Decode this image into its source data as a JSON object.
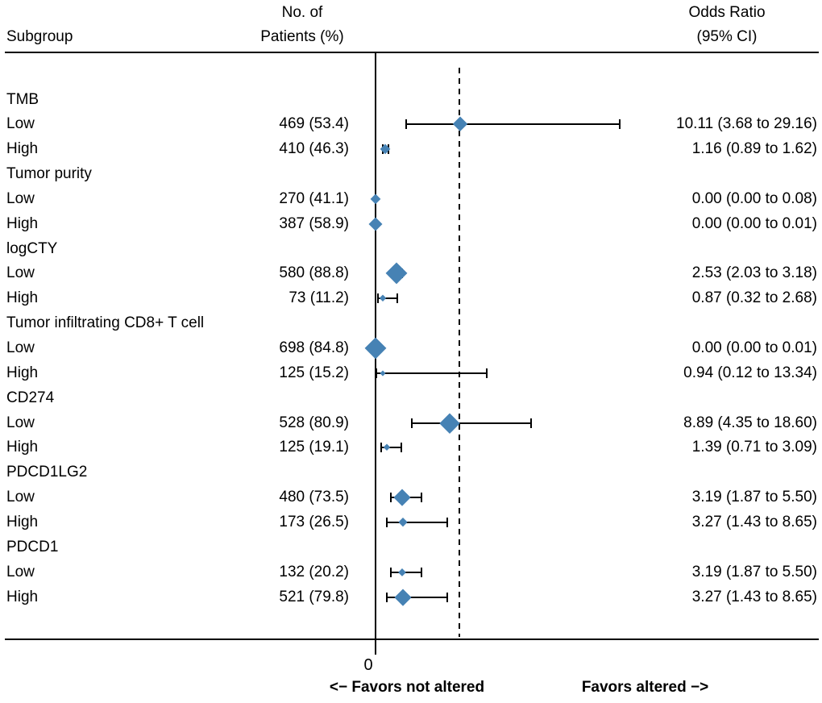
{
  "header": {
    "col_subgroup": "Subgroup",
    "col_patients_line1": "No. of",
    "col_patients_line2": "Patients (%)",
    "col_or_line1": "Odds Ratio",
    "col_or_line2": "(95% CI)"
  },
  "axis": {
    "zero_label": "0",
    "favors_left": "<− Favors not altered",
    "favors_right": "Favors altered −>"
  },
  "chart_data": {
    "type": "forest",
    "title": "",
    "columns": [
      "Subgroup",
      "No. of Patients (%)",
      "Odds Ratio (95% CI)"
    ],
    "x_axis": {
      "scale": "linear",
      "min": 0,
      "max": 52,
      "tick_labels": [
        "0"
      ],
      "zero_line": 0,
      "dashed_reference": 10
    },
    "marker_color": "#4682B4",
    "rows": [
      {
        "type": "group",
        "label": "TMB"
      },
      {
        "type": "item",
        "label": "Low",
        "patients": "469 (53.4)",
        "n": 469,
        "pct": 53.4,
        "or": 10.11,
        "ci_low": 3.68,
        "ci_high": 29.16,
        "or_text": "10.11 (3.68 to 29.16)",
        "marker": 19
      },
      {
        "type": "item",
        "label": "High",
        "patients": "410 (46.3)",
        "n": 410,
        "pct": 46.3,
        "or": 1.16,
        "ci_low": 0.89,
        "ci_high": 1.62,
        "or_text": "1.16 (0.89 to 1.62)",
        "marker": 13
      },
      {
        "type": "group",
        "label": "Tumor purity"
      },
      {
        "type": "item",
        "label": "Low",
        "patients": "270 (41.1)",
        "n": 270,
        "pct": 41.1,
        "or": 0.0,
        "ci_low": 0.0,
        "ci_high": 0.08,
        "or_text": "0.00 (0.00 to 0.08)",
        "marker": 13
      },
      {
        "type": "item",
        "label": "High",
        "patients": "387 (58.9)",
        "n": 387,
        "pct": 58.9,
        "or": 0.0,
        "ci_low": 0.0,
        "ci_high": 0.01,
        "or_text": "0.00 (0.00 to 0.01)",
        "marker": 17
      },
      {
        "type": "group",
        "label": "logCTY"
      },
      {
        "type": "item",
        "label": "Low",
        "patients": "580 (88.8)",
        "n": 580,
        "pct": 88.8,
        "or": 2.53,
        "ci_low": 2.03,
        "ci_high": 3.18,
        "or_text": "2.53 (2.03 to 3.18)",
        "marker": 27
      },
      {
        "type": "item",
        "label": "High",
        "patients": "73 (11.2)",
        "n": 73,
        "pct": 11.2,
        "or": 0.87,
        "ci_low": 0.32,
        "ci_high": 2.68,
        "or_text": "0.87 (0.32 to 2.68)",
        "marker": 9
      },
      {
        "type": "group",
        "label": "Tumor infiltrating CD8+ T cell"
      },
      {
        "type": "item",
        "label": "Low",
        "patients": "698 (84.8)",
        "n": 698,
        "pct": 84.8,
        "or": 0.0,
        "ci_low": 0.0,
        "ci_high": 0.01,
        "or_text": "0.00 (0.00 to 0.01)",
        "marker": 27
      },
      {
        "type": "item",
        "label": "High",
        "patients": "125 (15.2)",
        "n": 125,
        "pct": 15.2,
        "or": 0.94,
        "ci_low": 0.12,
        "ci_high": 13.34,
        "or_text": "0.94 (0.12 to 13.34)",
        "marker": 7
      },
      {
        "type": "group",
        "label": "CD274"
      },
      {
        "type": "item",
        "label": "Low",
        "patients": "528 (80.9)",
        "n": 528,
        "pct": 80.9,
        "or": 8.89,
        "ci_low": 4.35,
        "ci_high": 18.6,
        "or_text": "8.89 (4.35 to 18.60)",
        "marker": 25
      },
      {
        "type": "item",
        "label": "High",
        "patients": "125 (19.1)",
        "n": 125,
        "pct": 19.1,
        "or": 1.39,
        "ci_low": 0.71,
        "ci_high": 3.09,
        "or_text": "1.39 (0.71 to 3.09)",
        "marker": 9
      },
      {
        "type": "group",
        "label": "PDCD1LG2"
      },
      {
        "type": "item",
        "label": "Low",
        "patients": "480 (73.5)",
        "n": 480,
        "pct": 73.5,
        "or": 3.19,
        "ci_low": 1.87,
        "ci_high": 5.5,
        "or_text": "3.19 (1.87 to 5.50)",
        "marker": 21
      },
      {
        "type": "item",
        "label": "High",
        "patients": "173 (26.5)",
        "n": 173,
        "pct": 26.5,
        "or": 3.27,
        "ci_low": 1.43,
        "ci_high": 8.65,
        "or_text": "3.27 (1.43 to 8.65)",
        "marker": 12
      },
      {
        "type": "group",
        "label": "PDCD1"
      },
      {
        "type": "item",
        "label": "Low",
        "patients": "132 (20.2)",
        "n": 132,
        "pct": 20.2,
        "or": 3.19,
        "ci_low": 1.87,
        "ci_high": 5.5,
        "or_text": "3.19 (1.87 to 5.50)",
        "marker": 10
      },
      {
        "type": "item",
        "label": "High",
        "patients": "521 (79.8)",
        "n": 521,
        "pct": 79.8,
        "or": 3.27,
        "ci_low": 1.43,
        "ci_high": 8.65,
        "or_text": "3.27 (1.43 to 8.65)",
        "marker": 21
      }
    ]
  }
}
